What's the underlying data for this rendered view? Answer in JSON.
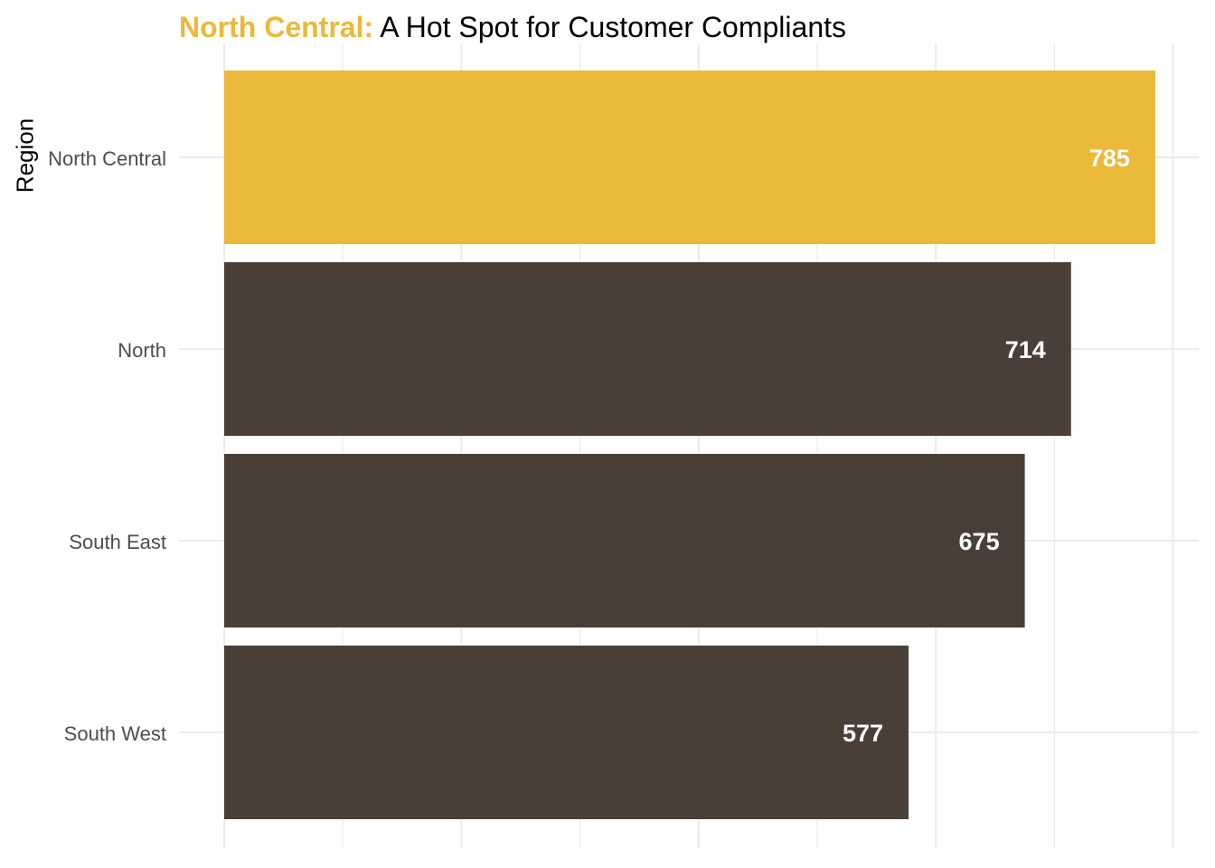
{
  "title": {
    "highlight": "North Central:",
    "rest": " A Hot Spot for Customer Compliants"
  },
  "colors": {
    "highlight": "#EBB93A",
    "base": "#4A3F37",
    "grid": "#EBEBEB",
    "axis_text": "#4D4D4D",
    "bar_label": "#FFFFFF"
  },
  "chart_data": {
    "type": "bar",
    "orientation": "horizontal",
    "title": "North Central: A Hot Spot for Customer Compliants",
    "xlabel": "",
    "ylabel": "Region",
    "categories": [
      "North Central",
      "North",
      "South East",
      "South West"
    ],
    "values": [
      785,
      714,
      675,
      577
    ],
    "highlighted_category": "North Central",
    "xlim": [
      0,
      800
    ],
    "x_ticks_labeled": false,
    "grid": true,
    "legend": "none"
  }
}
